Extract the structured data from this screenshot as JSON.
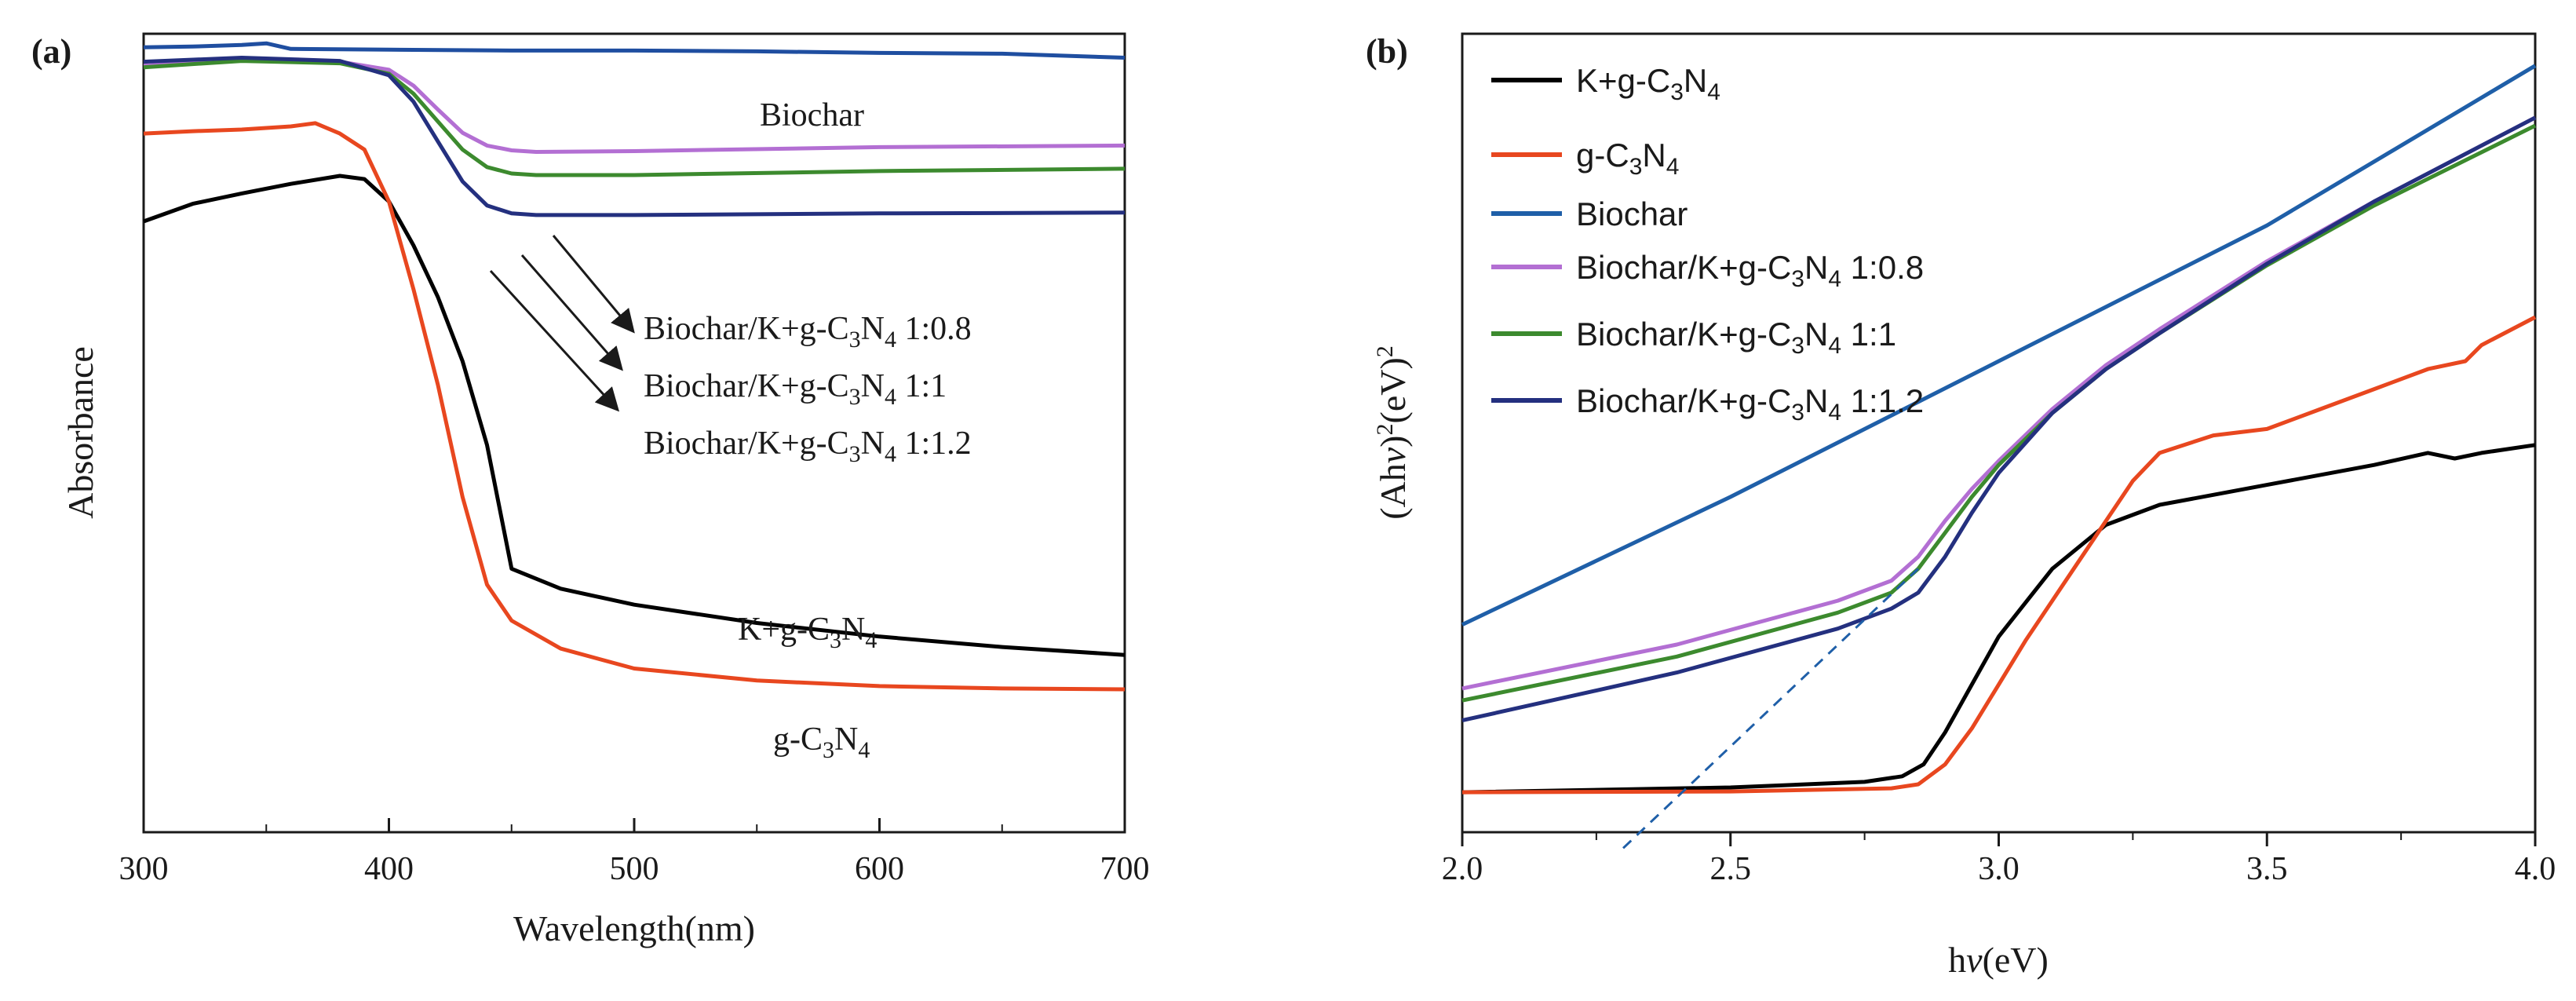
{
  "chart_data": [
    {
      "panel": "(a)",
      "type": "line",
      "xlabel": "Wavelength(nm)",
      "ylabel": "Absorbance",
      "xlim": [
        300,
        700
      ],
      "ylim": [
        0,
        1
      ],
      "xticks": [
        "300",
        "400",
        "500",
        "600",
        "700"
      ],
      "y_ticks_shown": false,
      "legend": "inline annotations",
      "series": [
        {
          "name": "Biochar",
          "color": "#1f4ea0",
          "x": [
            300,
            320,
            340,
            350,
            360,
            400,
            450,
            500,
            550,
            600,
            650,
            700
          ],
          "y": [
            0.983,
            0.984,
            0.986,
            0.988,
            0.981,
            0.98,
            0.979,
            0.979,
            0.978,
            0.976,
            0.975,
            0.97
          ]
        },
        {
          "name": "Biochar/K+g-C3N4 1:0.8",
          "color": "#b36fd3",
          "x": [
            300,
            340,
            380,
            400,
            410,
            420,
            430,
            440,
            450,
            460,
            500,
            600,
            700
          ],
          "y": [
            0.96,
            0.968,
            0.965,
            0.955,
            0.935,
            0.905,
            0.876,
            0.86,
            0.854,
            0.852,
            0.853,
            0.858,
            0.86
          ]
        },
        {
          "name": "Biochar/K+g-C3N4 1:1",
          "color": "#3c8a2e",
          "x": [
            300,
            340,
            380,
            400,
            410,
            420,
            430,
            440,
            450,
            460,
            500,
            600,
            700
          ],
          "y": [
            0.958,
            0.966,
            0.963,
            0.95,
            0.925,
            0.89,
            0.855,
            0.833,
            0.825,
            0.823,
            0.823,
            0.828,
            0.831
          ]
        },
        {
          "name": "Biochar/K+g-C3N4 1:1.2",
          "color": "#24307f",
          "x": [
            300,
            340,
            380,
            400,
            410,
            420,
            430,
            440,
            450,
            460,
            500,
            600,
            700
          ],
          "y": [
            0.965,
            0.97,
            0.966,
            0.948,
            0.915,
            0.865,
            0.815,
            0.785,
            0.775,
            0.773,
            0.773,
            0.775,
            0.776
          ]
        },
        {
          "name": "K+g-C3N4",
          "color": "#000000",
          "x": [
            300,
            320,
            340,
            360,
            380,
            390,
            400,
            410,
            420,
            430,
            440,
            450,
            470,
            500,
            550,
            600,
            650,
            700
          ],
          "y": [
            0.765,
            0.787,
            0.8,
            0.812,
            0.822,
            0.818,
            0.79,
            0.735,
            0.67,
            0.59,
            0.485,
            0.33,
            0.305,
            0.285,
            0.262,
            0.245,
            0.232,
            0.222
          ]
        },
        {
          "name": "g-C3N4",
          "color": "#e8471f",
          "x": [
            300,
            320,
            340,
            360,
            370,
            380,
            390,
            400,
            410,
            420,
            430,
            440,
            450,
            470,
            500,
            550,
            600,
            650,
            700
          ],
          "y": [
            0.875,
            0.878,
            0.88,
            0.884,
            0.888,
            0.875,
            0.855,
            0.79,
            0.68,
            0.56,
            0.42,
            0.31,
            0.265,
            0.23,
            0.205,
            0.19,
            0.183,
            0.18,
            0.179
          ]
        }
      ],
      "annotations": {
        "biochar": "Biochar",
        "ratio_08": "Biochar/K+g-C3N4 1:0.8",
        "ratio_1": "Biochar/K+g-C3N4 1:1",
        "ratio_12": "Biochar/K+g-C3N4 1:1.2",
        "kgcn": "K+g-C3N4",
        "gcn": "g-C3N4"
      }
    },
    {
      "panel": "(b)",
      "type": "line",
      "xlabel": "hv(eV)",
      "ylabel": "(Ahv)2(eV)2",
      "xlim": [
        2.0,
        4.0
      ],
      "ylim": [
        0,
        1
      ],
      "xticks": [
        "2.0",
        "2.5",
        "3.0",
        "3.5",
        "4.0"
      ],
      "y_ticks_shown": false,
      "legend": "top-left",
      "series": [
        {
          "name": "K+g-C3N4",
          "color": "#000000",
          "x": [
            2.0,
            2.5,
            2.75,
            2.82,
            2.86,
            2.9,
            2.95,
            3.0,
            3.1,
            3.2,
            3.3,
            3.5,
            3.7,
            3.8,
            3.85,
            3.9,
            4.0
          ],
          "y": [
            0.05,
            0.056,
            0.063,
            0.07,
            0.085,
            0.125,
            0.185,
            0.245,
            0.33,
            0.385,
            0.41,
            0.435,
            0.46,
            0.475,
            0.468,
            0.475,
            0.485
          ]
        },
        {
          "name": "g-C3N4",
          "color": "#e8471f",
          "x": [
            2.0,
            2.5,
            2.8,
            2.85,
            2.9,
            2.95,
            3.0,
            3.05,
            3.1,
            3.15,
            3.2,
            3.25,
            3.3,
            3.4,
            3.5,
            3.6,
            3.7,
            3.8,
            3.87,
            3.9,
            4.0
          ],
          "y": [
            0.05,
            0.051,
            0.055,
            0.06,
            0.085,
            0.13,
            0.185,
            0.24,
            0.29,
            0.34,
            0.39,
            0.44,
            0.475,
            0.497,
            0.505,
            0.53,
            0.555,
            0.58,
            0.59,
            0.61,
            0.645
          ]
        },
        {
          "name": "Biochar",
          "color": "#1f5fa8",
          "x": [
            2.0,
            2.5,
            3.0,
            3.5,
            4.0
          ],
          "y": [
            0.26,
            0.42,
            0.59,
            0.76,
            0.96
          ]
        },
        {
          "name": "Biochar/K+g-C3N4 1:0.8",
          "color": "#b36fd3",
          "x": [
            2.0,
            2.4,
            2.7,
            2.8,
            2.85,
            2.9,
            2.95,
            3.0,
            3.1,
            3.2,
            3.3,
            3.5,
            3.7,
            4.0
          ],
          "y": [
            0.18,
            0.235,
            0.29,
            0.315,
            0.345,
            0.39,
            0.43,
            0.465,
            0.53,
            0.585,
            0.63,
            0.715,
            0.79,
            0.895
          ]
        },
        {
          "name": "Biochar/K+g-C3N4 1:1",
          "color": "#3c8a2e",
          "x": [
            2.0,
            2.4,
            2.7,
            2.8,
            2.85,
            2.9,
            2.95,
            3.0,
            3.1,
            3.2,
            3.3,
            3.5,
            3.7,
            4.0
          ],
          "y": [
            0.165,
            0.22,
            0.275,
            0.3,
            0.33,
            0.375,
            0.42,
            0.46,
            0.525,
            0.58,
            0.625,
            0.71,
            0.785,
            0.885
          ]
        },
        {
          "name": "Biochar/K+g-C3N4 1:1.2",
          "color": "#24307f",
          "x": [
            2.0,
            2.4,
            2.7,
            2.8,
            2.85,
            2.9,
            2.95,
            3.0,
            3.1,
            3.2,
            3.3,
            3.5,
            3.7,
            4.0
          ],
          "y": [
            0.14,
            0.2,
            0.255,
            0.28,
            0.3,
            0.345,
            0.4,
            0.45,
            0.525,
            0.58,
            0.625,
            0.712,
            0.79,
            0.895
          ]
        }
      ],
      "tangent": {
        "color": "#1f5fa8",
        "style": "dashed",
        "x": [
          2.3,
          2.85
        ],
        "y": [
          -0.02,
          0.33
        ]
      }
    }
  ]
}
